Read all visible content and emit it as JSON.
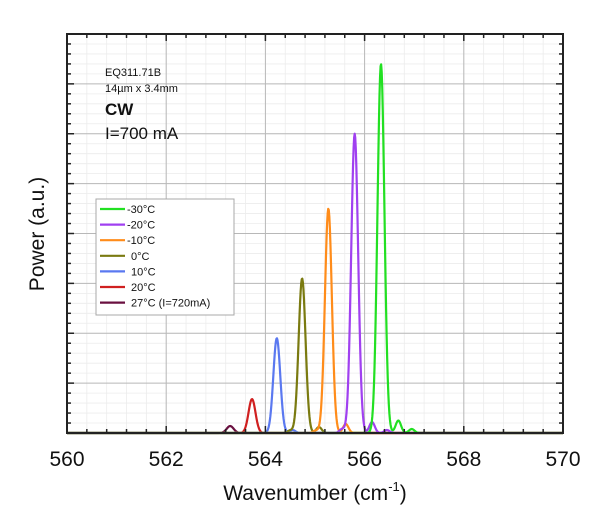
{
  "chart_data": {
    "type": "line",
    "title": "",
    "xlabel": "Wavenumber (cm",
    "xlabel_sup": "-1",
    "xlabel_close": ")",
    "ylabel": "Power (a.u.)",
    "xlim": [
      560,
      570
    ],
    "ylim": [
      0,
      8
    ],
    "x_ticks": [
      "560",
      "562",
      "564",
      "566",
      "568",
      "570"
    ],
    "x_tick_values": [
      560,
      562,
      564,
      566,
      568,
      570
    ],
    "grid": true,
    "legend_position": "center-left",
    "annotations": {
      "device": "EQ311.71B",
      "dims": "14µm x 3.4mm",
      "mode": "CW",
      "current": "I=700 mA"
    },
    "series": [
      {
        "name": "-30°C",
        "color": "#22e022",
        "peak_x": 566.33,
        "peak_y": 7.4,
        "width": 0.07,
        "side": [
          [
            566.68,
            0.25
          ],
          [
            566.95,
            0.08
          ]
        ]
      },
      {
        "name": "-20°C",
        "color": "#a040f0",
        "peak_x": 565.8,
        "peak_y": 6.0,
        "width": 0.07,
        "side": [
          [
            566.15,
            0.22
          ],
          [
            566.45,
            0.06
          ],
          [
            565.55,
            0.08
          ]
        ]
      },
      {
        "name": "-10°C",
        "color": "#ff8c1a",
        "peak_x": 565.27,
        "peak_y": 4.5,
        "width": 0.07,
        "side": [
          [
            565.62,
            0.18
          ],
          [
            565.02,
            0.05
          ]
        ]
      },
      {
        "name": "0°C",
        "color": "#7a7a10",
        "peak_x": 564.74,
        "peak_y": 3.1,
        "width": 0.07,
        "side": [
          [
            565.08,
            0.12
          ],
          [
            564.5,
            0.05
          ]
        ]
      },
      {
        "name": "10°C",
        "color": "#5a78f0",
        "peak_x": 564.23,
        "peak_y": 1.9,
        "width": 0.07,
        "side": [
          [
            564.55,
            0.06
          ]
        ]
      },
      {
        "name": "20°C",
        "color": "#d02020",
        "peak_x": 563.73,
        "peak_y": 0.68,
        "width": 0.07,
        "side": []
      },
      {
        "name": "27°C (I=720mA)",
        "color": "#6a1040",
        "peak_x": 563.29,
        "peak_y": 0.14,
        "width": 0.07,
        "side": []
      }
    ]
  }
}
